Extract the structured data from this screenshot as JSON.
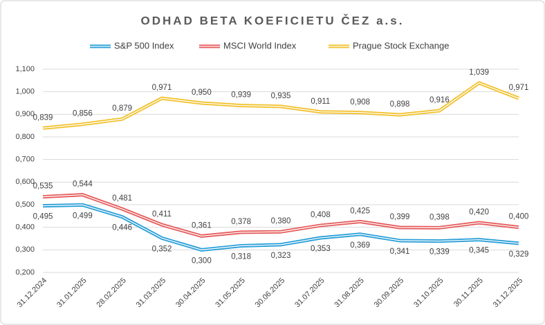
{
  "chart_data": {
    "type": "line",
    "title": "ODHAD BETA KOEFICIETU ČEZ a.s.",
    "categories": [
      "31.12.2024",
      "31.01.2025",
      "28.02.2025",
      "31.03.2025",
      "30.04.2025",
      "31.05.2025",
      "30.06.2025",
      "31.07.2025",
      "31.08.2025",
      "30.09.2025",
      "31.10.2025",
      "30.11.2025",
      "31.12.2025"
    ],
    "series": [
      {
        "name": "S&P 500 Index",
        "color": "#2a9fd8",
        "values": [
          0.495,
          0.499,
          0.446,
          0.352,
          0.3,
          0.318,
          0.323,
          0.353,
          0.369,
          0.341,
          0.339,
          0.345,
          0.329
        ],
        "value_labels": [
          "0,495",
          "0,499",
          "0,446",
          "0,352",
          "0,300",
          "0,318",
          "0,323",
          "0,353",
          "0,369",
          "0,341",
          "0,339",
          "0,345",
          "0,329"
        ]
      },
      {
        "name": "MSCI World Index",
        "color": "#e65c5c",
        "values": [
          0.535,
          0.544,
          0.481,
          0.411,
          0.361,
          0.378,
          0.38,
          0.408,
          0.425,
          0.399,
          0.398,
          0.42,
          0.4
        ],
        "value_labels": [
          "0,535",
          "0,544",
          "0,481",
          "0,411",
          "0,361",
          "0,378",
          "0,380",
          "0,408",
          "0,425",
          "0,399",
          "0,398",
          "0,420",
          "0,400"
        ]
      },
      {
        "name": "Prague Stock Exchange",
        "color": "#f2c230",
        "values": [
          0.839,
          0.856,
          0.879,
          0.971,
          0.95,
          0.939,
          0.935,
          0.911,
          0.908,
          0.898,
          0.916,
          1.039,
          0.971
        ],
        "value_labels": [
          "0,839",
          "0,856",
          "0,879",
          "0,971",
          "0,950",
          "0,939",
          "0,935",
          "0,911",
          "0,908",
          "0,898",
          "0,916",
          "1,039",
          "0,971"
        ]
      }
    ],
    "ylim": [
      0.2,
      1.1
    ],
    "yticks": [
      {
        "value": 0.2,
        "label": "0,200"
      },
      {
        "value": 0.3,
        "label": "0,300"
      },
      {
        "value": 0.4,
        "label": "0,400"
      },
      {
        "value": 0.5,
        "label": "0,500"
      },
      {
        "value": 0.6,
        "label": "0,600"
      },
      {
        "value": 0.7,
        "label": "0,700"
      },
      {
        "value": 0.8,
        "label": "0,800"
      },
      {
        "value": 0.9,
        "label": "0,900"
      },
      {
        "value": 1.0,
        "label": "1,000"
      },
      {
        "value": 1.1,
        "label": "1,100"
      }
    ],
    "grid": true,
    "legend": "top"
  }
}
